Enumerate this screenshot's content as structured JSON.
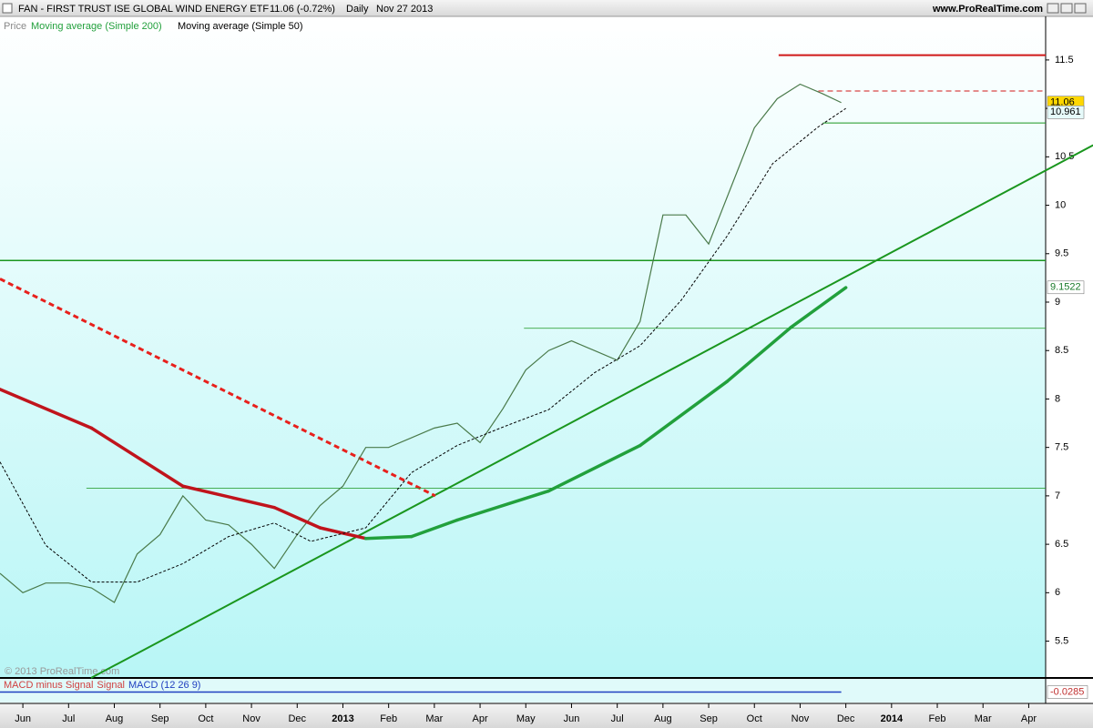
{
  "chart_data": {
    "type": "line",
    "title": "FAN - FIRST TRUST ISE GLOBAL WIND ENERGY ETF",
    "quote": "11.06 (-0.72%)",
    "period": "Daily",
    "date": "Nov 27 2013",
    "site": "www.ProRealTime.com",
    "watermark": "© 2013 ProRealTime.com",
    "legend_prefix": "Price",
    "xlim": [
      -0.5,
      22.37
    ],
    "xticks": [
      {
        "value": 0,
        "label": "Jun"
      },
      {
        "value": 1,
        "label": "Jul"
      },
      {
        "value": 2,
        "label": "Aug"
      },
      {
        "value": 3,
        "label": "Sep"
      },
      {
        "value": 4,
        "label": "Oct"
      },
      {
        "value": 5,
        "label": "Nov"
      },
      {
        "value": 6,
        "label": "Dec"
      },
      {
        "value": 7,
        "label": "2013"
      },
      {
        "value": 8,
        "label": "Feb"
      },
      {
        "value": 9,
        "label": "Mar"
      },
      {
        "value": 10,
        "label": "Apr"
      },
      {
        "value": 11,
        "label": "May"
      },
      {
        "value": 12,
        "label": "Jun"
      },
      {
        "value": 13,
        "label": "Jul"
      },
      {
        "value": 14,
        "label": "Aug"
      },
      {
        "value": 15,
        "label": "Sep"
      },
      {
        "value": 16,
        "label": "Oct"
      },
      {
        "value": 17,
        "label": "Nov"
      },
      {
        "value": 18,
        "label": "Dec"
      },
      {
        "value": 19,
        "label": "2014"
      },
      {
        "value": 20,
        "label": "Feb"
      },
      {
        "value": 21,
        "label": "Mar"
      },
      {
        "value": 22,
        "label": "Apr"
      }
    ],
    "ylim": [
      5.12,
      11.95
    ],
    "yticks": [
      5.5,
      6,
      6.5,
      7,
      7.5,
      8,
      8.5,
      9,
      9.5,
      10,
      10.5,
      11,
      11.5
    ],
    "series": [
      {
        "name": "Moving average (Simple 200)",
        "color": "#22a03c",
        "falling_color": "#c0141c",
        "width": 3.5,
        "x": [
          -0.5,
          1.5,
          3.5,
          5.5,
          6.5,
          7.5,
          8.5,
          9.5,
          11.5,
          13.5,
          15.4,
          16.8,
          18.0
        ],
        "values": [
          8.1,
          7.7,
          7.1,
          6.88,
          6.67,
          6.56,
          6.58,
          6.75,
          7.05,
          7.52,
          8.18,
          8.74,
          9.15
        ]
      },
      {
        "name": "Moving average (Simple 50)",
        "color": "#000000",
        "dash": true,
        "width": 1,
        "x": [
          -0.5,
          0.5,
          1.5,
          2.5,
          3.5,
          4.5,
          5.5,
          6.3,
          7.5,
          8.5,
          9.5,
          10.5,
          11.5,
          12.5,
          13.5,
          14.4,
          15.4,
          16.4,
          17.4,
          18.0
        ],
        "values": [
          7.35,
          6.49,
          6.11,
          6.11,
          6.3,
          6.58,
          6.72,
          6.53,
          6.67,
          7.24,
          7.52,
          7.71,
          7.89,
          8.27,
          8.55,
          9.02,
          9.68,
          10.43,
          10.81,
          11.0
        ]
      }
    ],
    "price": {
      "color": "#4a7a4a",
      "x": [
        -0.5,
        0,
        0.5,
        1,
        1.5,
        2,
        2.5,
        3,
        3.5,
        4,
        4.5,
        5,
        5.5,
        6,
        6.5,
        7,
        7.5,
        8,
        8.5,
        9,
        9.5,
        10,
        10.5,
        11,
        11.5,
        12,
        12.5,
        13,
        13.5,
        14,
        14.5,
        15,
        15.5,
        16,
        16.5,
        17,
        17.5,
        17.9
      ],
      "values": [
        6.2,
        6.0,
        6.1,
        6.1,
        6.05,
        5.9,
        6.4,
        6.6,
        7.0,
        6.75,
        6.7,
        6.5,
        6.25,
        6.6,
        6.9,
        7.1,
        7.5,
        7.5,
        7.6,
        7.7,
        7.75,
        7.55,
        7.9,
        8.3,
        8.5,
        8.6,
        8.5,
        8.4,
        8.8,
        9.9,
        9.9,
        9.6,
        10.2,
        10.8,
        11.1,
        11.25,
        11.15,
        11.06
      ]
    },
    "lines": [
      {
        "x": [
          1.49,
          23.41
        ],
        "y": [
          5.12,
          10.62
        ],
        "color": "#1a961e",
        "width": 2
      },
      {
        "x": [
          -0.5,
          9.02
        ],
        "y": [
          9.24,
          7.0
        ],
        "color": "#e8201c",
        "width": 3,
        "dash": true
      },
      {
        "x": [
          16.53,
          22.37
        ],
        "y": [
          11.55,
          11.55
        ],
        "color": "#d01818",
        "width": 2
      },
      {
        "x": [
          17.4,
          22.37
        ],
        "y": [
          11.18,
          11.18
        ],
        "color": "#d01818",
        "width": 1,
        "dash": true
      },
      {
        "x": [
          17.5,
          22.37
        ],
        "y": [
          10.85,
          10.85
        ],
        "color": "#1a961e",
        "width": 1
      },
      {
        "x": [
          -0.5,
          22.37
        ],
        "y": [
          9.43,
          9.43
        ],
        "color": "#1a961e",
        "width": 1.5
      },
      {
        "x": [
          10.96,
          22.37
        ],
        "y": [
          8.73,
          8.73
        ],
        "color": "#1a961e",
        "width": 0.8
      },
      {
        "x": [
          1.39,
          22.37
        ],
        "y": [
          7.08,
          7.08
        ],
        "color": "#1a961e",
        "width": 0.8
      }
    ],
    "last_values": [
      {
        "value": 11.06,
        "color": "#ffd700",
        "text_color": "#000000"
      },
      {
        "value": 10.961,
        "color": "#e6fafa",
        "text_color": "#000000"
      },
      {
        "value": 9.1522,
        "color": "#ffffff",
        "text_color": "#1a7a2a"
      }
    ],
    "macd": {
      "legend": [
        {
          "name": "MACD minus Signal",
          "color": "#d04040"
        },
        {
          "name": "Signal",
          "color": "#d04040"
        },
        {
          "name": "MACD (12 26 9)",
          "color": "#2040c0"
        }
      ],
      "value": -0.0285,
      "ylim": [
        -0.35,
        0.35
      ]
    }
  }
}
